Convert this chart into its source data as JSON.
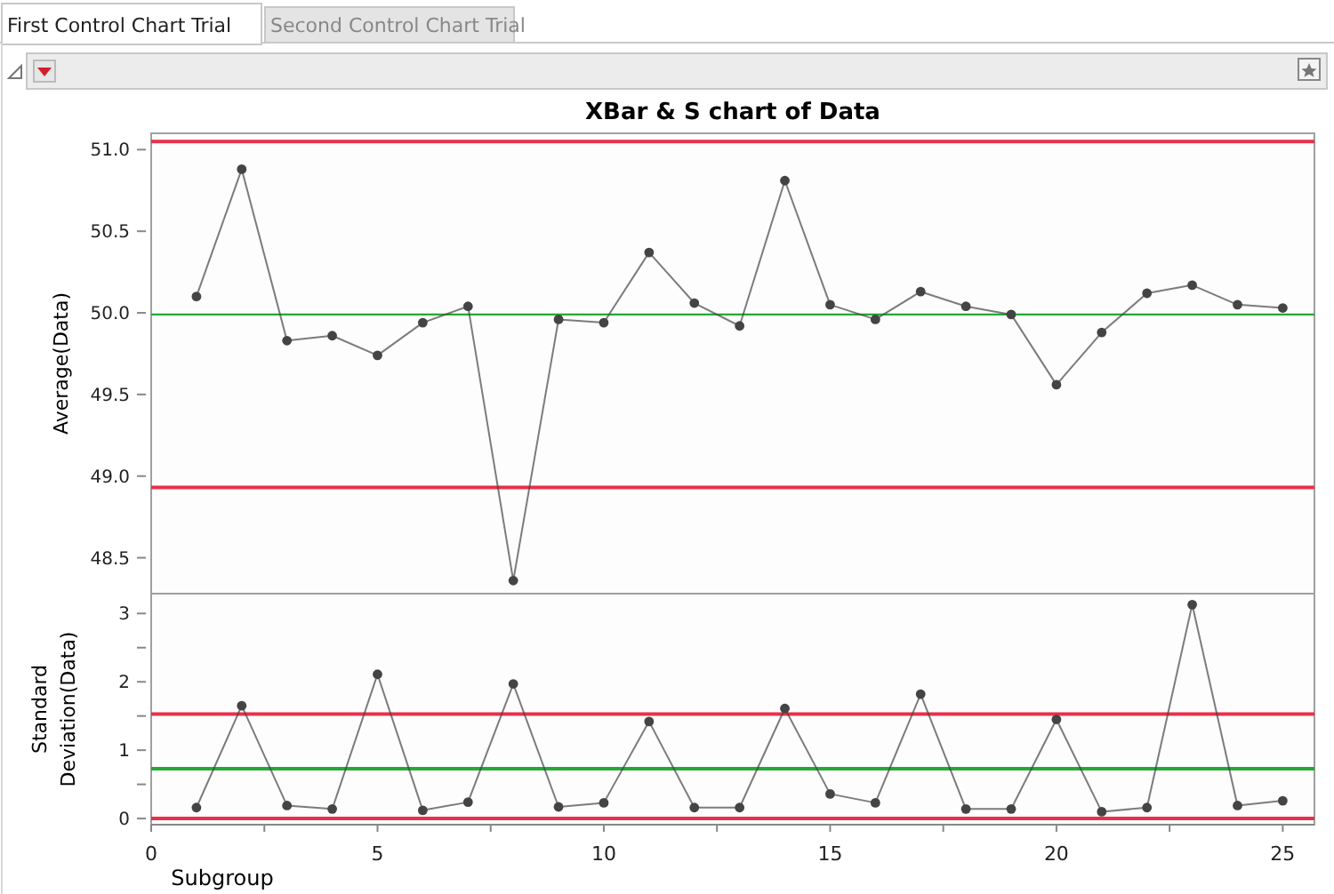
{
  "chart_data": [
    {
      "type": "line",
      "title": "XBar & S chart of Data",
      "ylabel": "Average(Data)",
      "annotations": [
        "First Control Chart Trial",
        "Second Control Chart Trial"
      ],
      "x": [
        1,
        2,
        3,
        4,
        5,
        6,
        7,
        8,
        9,
        10,
        11,
        12,
        13,
        14,
        15,
        16,
        17,
        18,
        19,
        20,
        21,
        22,
        23,
        24,
        25
      ],
      "series": [
        {
          "color": "#444444",
          "values": [
            50.1,
            50.88,
            49.83,
            49.86,
            49.74,
            49.94,
            50.04,
            48.36,
            49.96,
            49.94,
            50.37,
            50.06,
            49.92,
            50.81,
            50.05,
            49.96,
            50.13,
            50.04,
            49.99,
            49.56,
            49.88,
            50.12,
            50.17,
            50.05,
            50.03
          ]
        }
      ],
      "xlim": [
        0,
        25.7
      ],
      "ylim": [
        48.28,
        51.1
      ],
      "yticks": [
        {
          "value": 48.5,
          "label": "48.5"
        },
        {
          "value": 49,
          "label": "49.0"
        },
        {
          "value": 49.5,
          "label": "49.5"
        },
        {
          "value": 50,
          "label": "50.0"
        },
        {
          "value": 50.5,
          "label": "50.5"
        },
        {
          "value": 51,
          "label": "51.0"
        }
      ],
      "tick_labels": "y",
      "marker": "circle",
      "line_style": "solid",
      "grid": false,
      "ref_lines": [
        {
          "axis": "y",
          "value": 51.05,
          "color": "#e8304a"
        },
        {
          "axis": "y",
          "value": 49.99,
          "color": "#22aa33"
        },
        {
          "axis": "y",
          "value": 48.93,
          "color": "#e8304a"
        }
      ]
    },
    {
      "type": "line",
      "xlabel": "Subgroup",
      "ylabel": "Standard Deviation(Data)",
      "x": [
        1,
        2,
        3,
        4,
        5,
        6,
        7,
        8,
        9,
        10,
        11,
        12,
        13,
        14,
        15,
        16,
        17,
        18,
        19,
        20,
        21,
        22,
        23,
        24,
        25
      ],
      "series": [
        {
          "color": "#444444",
          "values": [
            0.16,
            1.65,
            0.19,
            0.14,
            2.11,
            0.12,
            0.24,
            1.97,
            0.17,
            0.23,
            1.42,
            0.16,
            0.16,
            1.61,
            0.36,
            0.23,
            1.82,
            0.14,
            0.14,
            1.45,
            0.1,
            0.16,
            3.13,
            0.19,
            0.26
          ]
        }
      ],
      "xlim": [
        0,
        25.7
      ],
      "xticks": [
        0,
        {
          "value": 2.5,
          "label": null
        },
        5,
        {
          "value": 7.5,
          "label": null
        },
        10,
        {
          "value": 12.5,
          "label": null
        },
        15,
        {
          "value": 17.5,
          "label": null
        },
        20,
        {
          "value": 22.5,
          "label": null
        },
        25
      ],
      "ylim": [
        -0.09,
        3.29
      ],
      "yticks": [
        0,
        {
          "value": 0.5,
          "label": null
        },
        1,
        {
          "value": 1.5,
          "label": null
        },
        2,
        {
          "value": 2.5,
          "label": null
        },
        3
      ],
      "marker": "circle",
      "line_style": "solid",
      "grid": false,
      "ref_lines": [
        {
          "axis": "y",
          "value": 1.53,
          "color": "#e8304a"
        },
        {
          "axis": "y",
          "value": 0.73,
          "color": "#22aa33"
        },
        {
          "axis": "y",
          "value": 0,
          "color": "#e8304a"
        }
      ]
    }
  ]
}
